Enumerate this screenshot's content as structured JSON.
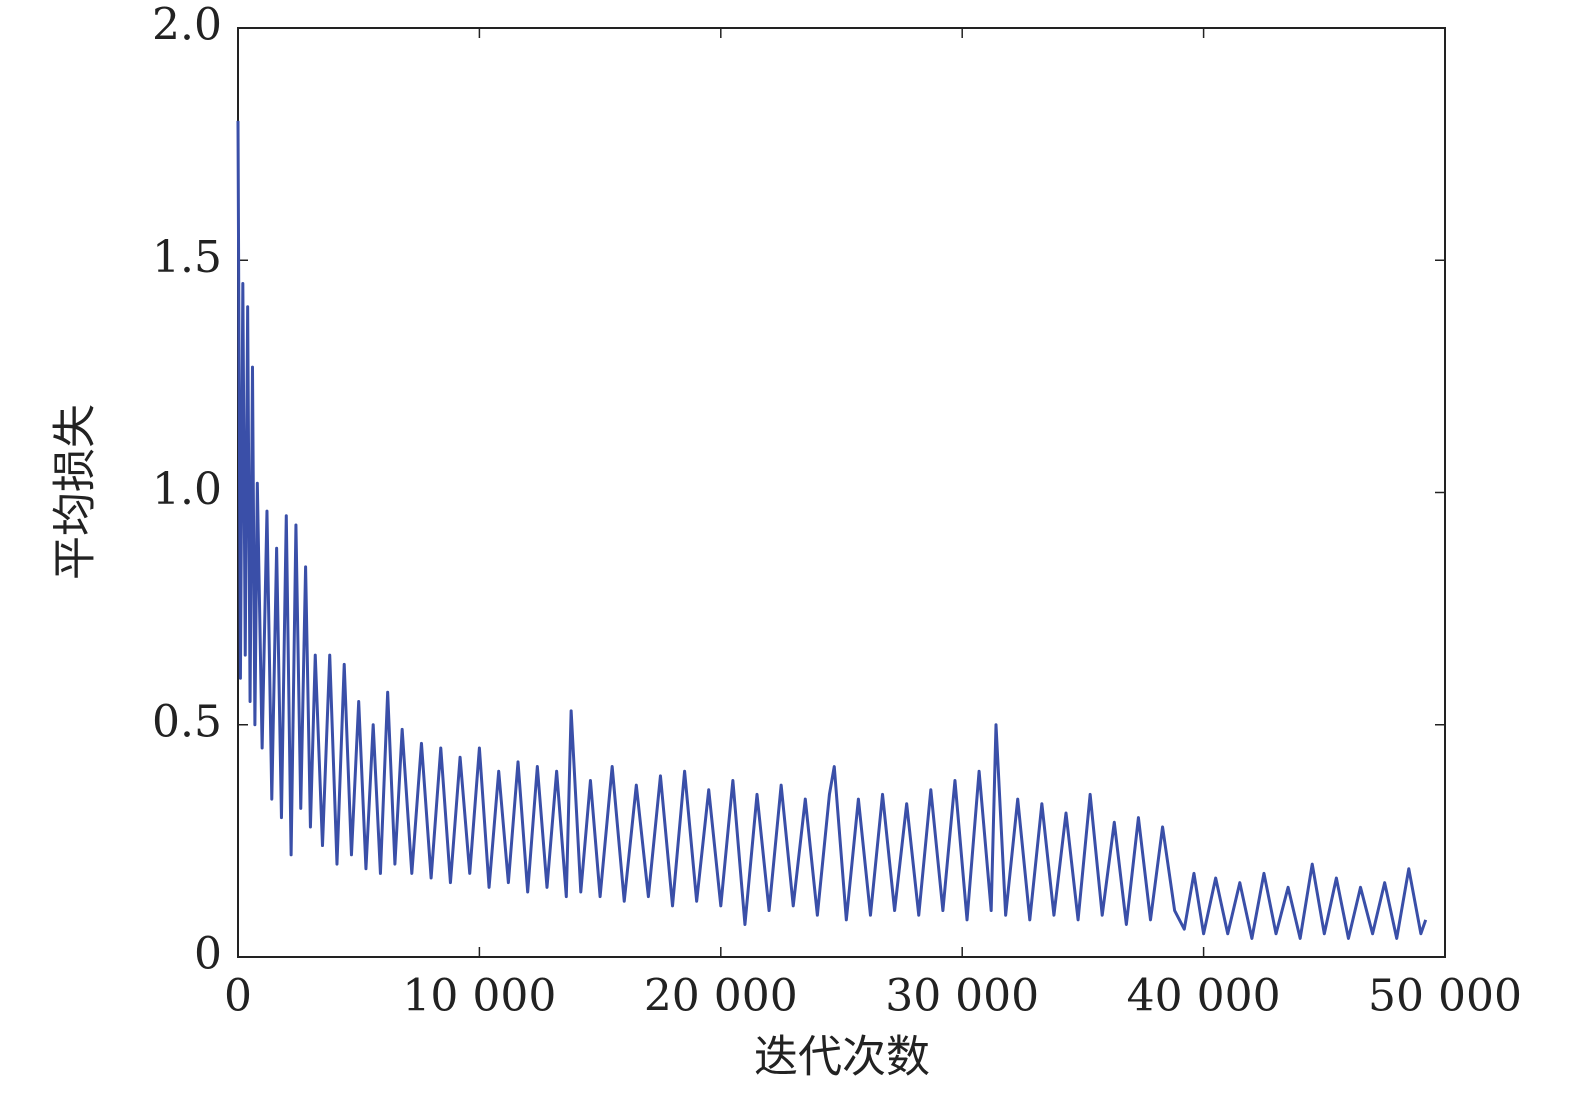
{
  "chart_data": {
    "type": "line",
    "x_label": "迭代次数",
    "y_label": "平均损失",
    "xlim": [
      0,
      50000
    ],
    "ylim": [
      0,
      2
    ],
    "xticks": [
      0,
      {
        "value": 10000,
        "label": "10 000"
      },
      {
        "value": 20000,
        "label": "20 000"
      },
      {
        "value": 30000,
        "label": "30 000"
      },
      {
        "value": 40000,
        "label": "40 000"
      },
      {
        "value": 50000,
        "label": "50 000"
      }
    ],
    "yticks": [
      0,
      0.5,
      {
        "value": 1,
        "label": "1.0"
      },
      1.5,
      {
        "value": 2,
        "label": "2.0"
      }
    ],
    "grid": false,
    "x": [
      0,
      100,
      200,
      300,
      400,
      500,
      600,
      700,
      800,
      1000,
      1200,
      1400,
      1600,
      1800,
      2000,
      2200,
      2400,
      2600,
      2800,
      3000,
      3200,
      3500,
      3800,
      4100,
      4400,
      4700,
      5000,
      5300,
      5600,
      5900,
      6200,
      6500,
      6800,
      7200,
      7600,
      8000,
      8400,
      8800,
      9200,
      9600,
      10000,
      10400,
      10800,
      11200,
      11600,
      12000,
      12400,
      12800,
      13200,
      13600,
      13800,
      14200,
      14600,
      15000,
      15500,
      16000,
      16500,
      17000,
      17500,
      18000,
      18500,
      19000,
      19500,
      20000,
      20500,
      21000,
      21500,
      22000,
      22500,
      23000,
      23500,
      24000,
      24500,
      24700,
      25200,
      25700,
      26200,
      26700,
      27200,
      27700,
      28200,
      28700,
      29200,
      29700,
      30200,
      30700,
      31200,
      31400,
      31800,
      32300,
      32800,
      33300,
      33800,
      34300,
      34800,
      35300,
      35800,
      36300,
      36800,
      37300,
      37800,
      38300,
      38800,
      39200,
      39600,
      40000,
      40500,
      41000,
      41500,
      42000,
      42500,
      43000,
      43500,
      44000,
      44500,
      45000,
      45500,
      46000,
      46500,
      47000,
      47500,
      48000,
      48500,
      49000,
      49200
    ],
    "series": [
      {
        "color": "#3a4fa8",
        "values": [
          1.8,
          0.6,
          1.45,
          0.65,
          1.4,
          0.55,
          1.27,
          0.5,
          1.02,
          0.45,
          0.96,
          0.34,
          0.88,
          0.3,
          0.95,
          0.22,
          0.93,
          0.32,
          0.84,
          0.28,
          0.65,
          0.24,
          0.65,
          0.2,
          0.63,
          0.22,
          0.55,
          0.19,
          0.5,
          0.18,
          0.57,
          0.2,
          0.49,
          0.18,
          0.46,
          0.17,
          0.45,
          0.16,
          0.43,
          0.18,
          0.45,
          0.15,
          0.4,
          0.16,
          0.42,
          0.14,
          0.41,
          0.15,
          0.4,
          0.13,
          0.53,
          0.14,
          0.38,
          0.13,
          0.41,
          0.12,
          0.37,
          0.13,
          0.39,
          0.11,
          0.4,
          0.12,
          0.36,
          0.11,
          0.38,
          0.07,
          0.35,
          0.1,
          0.37,
          0.11,
          0.34,
          0.09,
          0.35,
          0.41,
          0.08,
          0.34,
          0.09,
          0.35,
          0.1,
          0.33,
          0.09,
          0.36,
          0.1,
          0.38,
          0.08,
          0.4,
          0.1,
          0.5,
          0.09,
          0.34,
          0.08,
          0.33,
          0.09,
          0.31,
          0.08,
          0.35,
          0.09,
          0.29,
          0.07,
          0.3,
          0.08,
          0.28,
          0.1,
          0.06,
          0.18,
          0.05,
          0.17,
          0.05,
          0.16,
          0.04,
          0.18,
          0.05,
          0.15,
          0.04,
          0.2,
          0.05,
          0.17,
          0.04,
          0.15,
          0.05,
          0.16,
          0.04,
          0.19,
          0.05,
          0.08
        ]
      }
    ]
  }
}
